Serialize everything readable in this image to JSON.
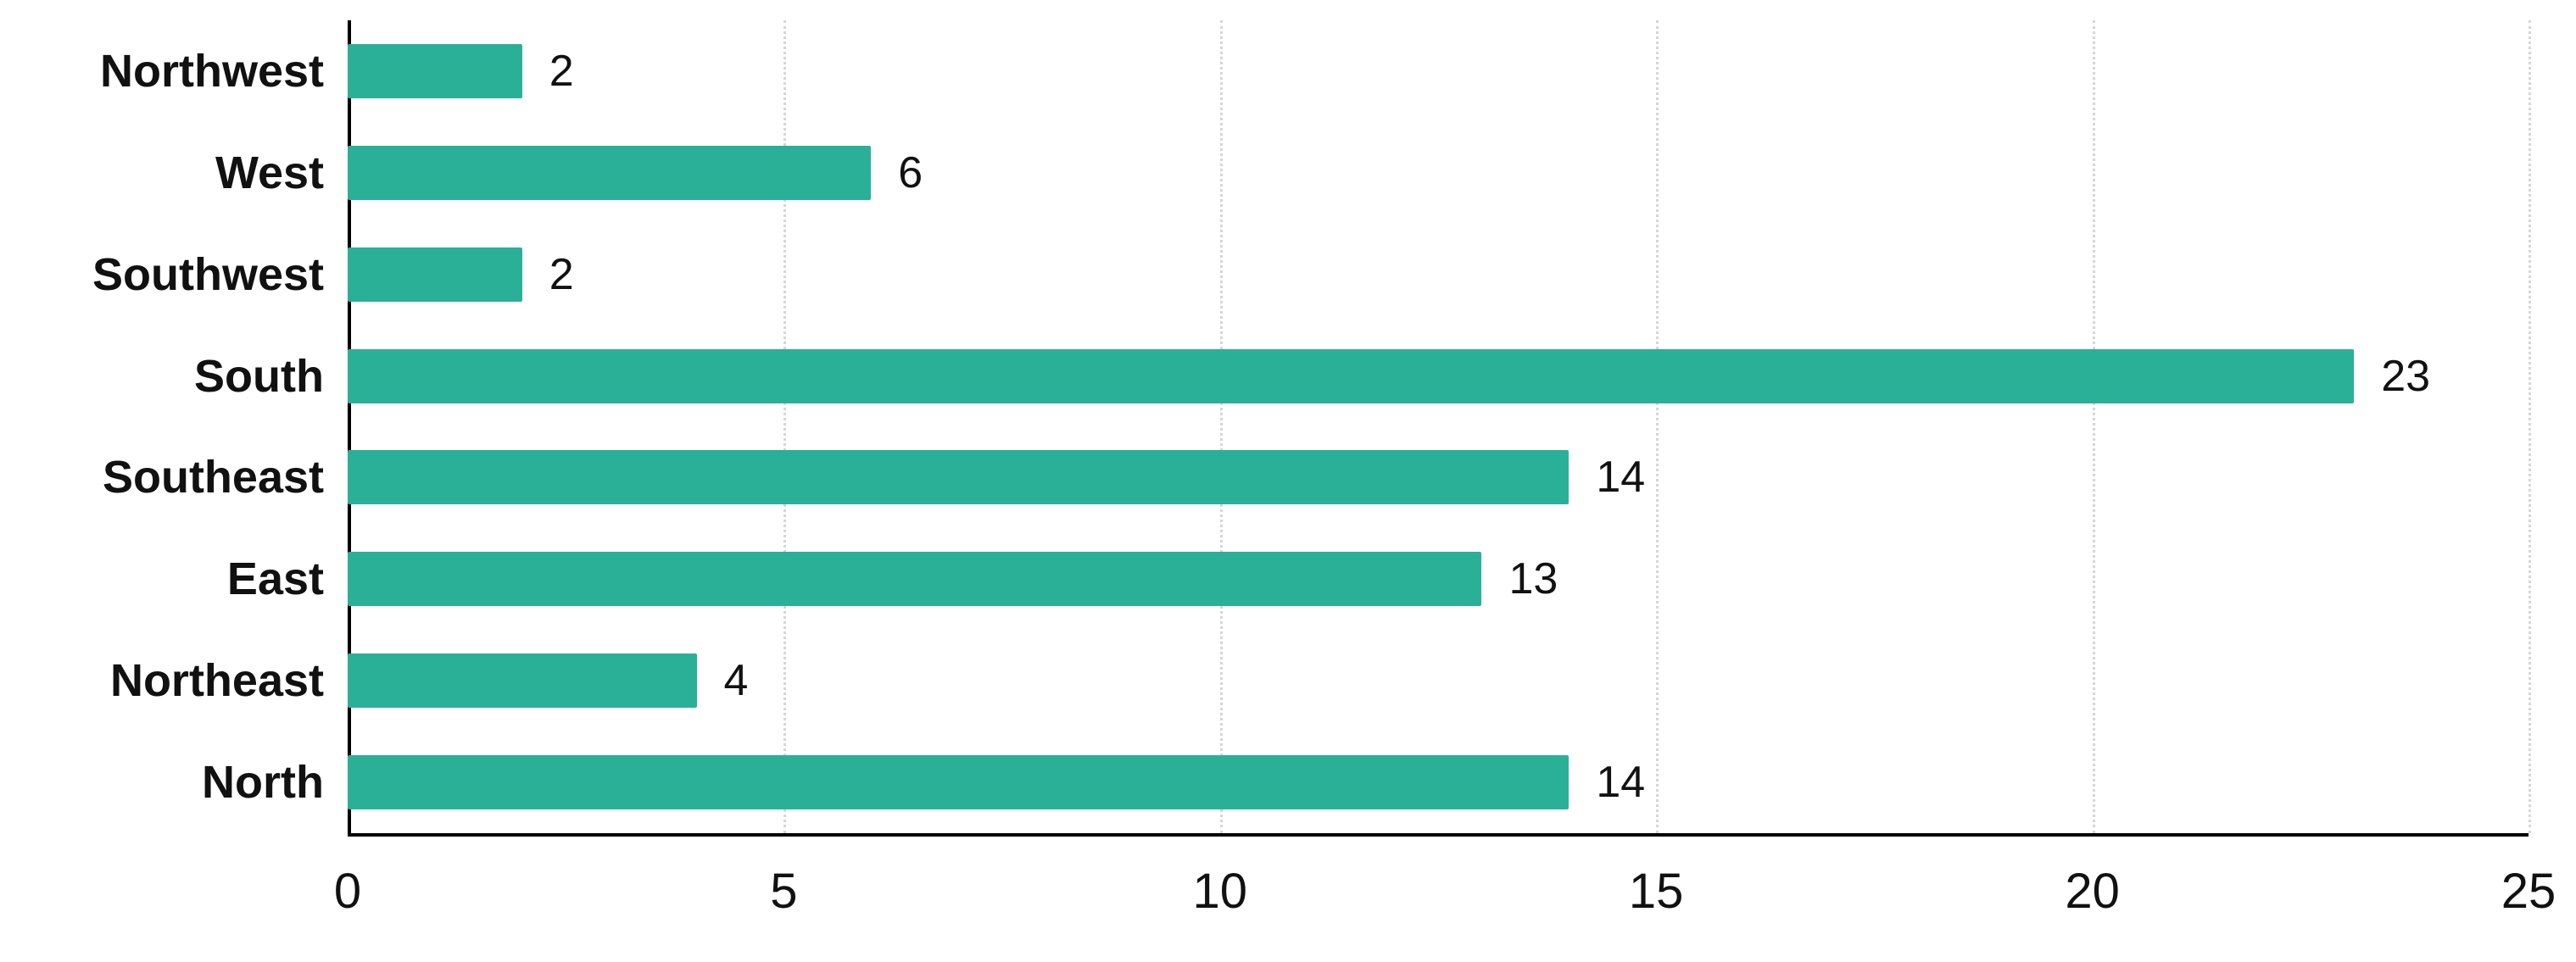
{
  "chart_data": {
    "type": "bar",
    "orientation": "horizontal",
    "title": "",
    "xlabel": "",
    "ylabel": "",
    "categories": [
      "Northwest",
      "West",
      "Southwest",
      "South",
      "Southeast",
      "East",
      "Northeast",
      "North"
    ],
    "values": [
      2,
      6,
      2,
      23,
      14,
      13,
      4,
      14
    ],
    "xlim": [
      0,
      25
    ],
    "xticks": [
      0,
      5,
      10,
      15,
      20,
      25
    ],
    "bar_color": "#2bb098",
    "axis_color": "#000000",
    "gridline_color": "#d6d6d6",
    "grid": "vertical-dotted",
    "legend": "none",
    "value_labels": "outside-end"
  }
}
